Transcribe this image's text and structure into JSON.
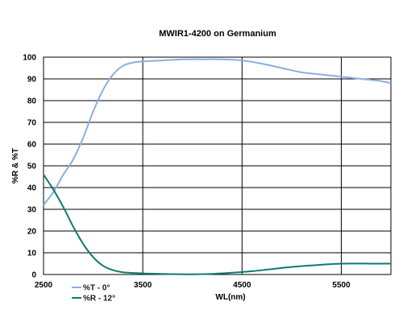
{
  "chart_data": {
    "type": "line",
    "title": "MWIR1-4200 on Germanium",
    "xlabel": "WL(nm)",
    "ylabel": "%R & %T",
    "xlim": [
      2500,
      6000
    ],
    "ylim": [
      0,
      100
    ],
    "x_ticks": [
      2500,
      3500,
      4500,
      5500
    ],
    "y_ticks": [
      0,
      10,
      20,
      30,
      40,
      50,
      60,
      70,
      80,
      90,
      100
    ],
    "grid": "x and y at ticks",
    "legend_position": "bottom-left",
    "series": [
      {
        "name": "%T - 0°",
        "color": "#8aafde",
        "points": [
          [
            2500,
            32
          ],
          [
            2600,
            38
          ],
          [
            2700,
            46
          ],
          [
            2800,
            53
          ],
          [
            2900,
            63
          ],
          [
            3000,
            75
          ],
          [
            3100,
            85
          ],
          [
            3200,
            92
          ],
          [
            3300,
            96
          ],
          [
            3400,
            97.5
          ],
          [
            3500,
            98
          ],
          [
            3700,
            98.5
          ],
          [
            3900,
            99
          ],
          [
            4100,
            99
          ],
          [
            4300,
            99
          ],
          [
            4500,
            98.5
          ],
          [
            4700,
            97
          ],
          [
            4900,
            95
          ],
          [
            5100,
            93
          ],
          [
            5300,
            92
          ],
          [
            5500,
            91
          ],
          [
            5700,
            90
          ],
          [
            5900,
            89
          ],
          [
            6000,
            88
          ]
        ]
      },
      {
        "name": "%R - 12°",
        "color": "#0e7a6e",
        "points": [
          [
            2500,
            46
          ],
          [
            2600,
            39
          ],
          [
            2700,
            31
          ],
          [
            2800,
            22
          ],
          [
            2900,
            14
          ],
          [
            3000,
            8
          ],
          [
            3100,
            4
          ],
          [
            3200,
            2
          ],
          [
            3300,
            1
          ],
          [
            3500,
            0.5
          ],
          [
            3800,
            0.2
          ],
          [
            4000,
            0.1
          ],
          [
            4200,
            0.3
          ],
          [
            4400,
            0.8
          ],
          [
            4600,
            1.5
          ],
          [
            4800,
            2.5
          ],
          [
            5000,
            3.5
          ],
          [
            5200,
            4.2
          ],
          [
            5500,
            5
          ],
          [
            5800,
            5
          ],
          [
            6000,
            5
          ]
        ]
      }
    ]
  }
}
